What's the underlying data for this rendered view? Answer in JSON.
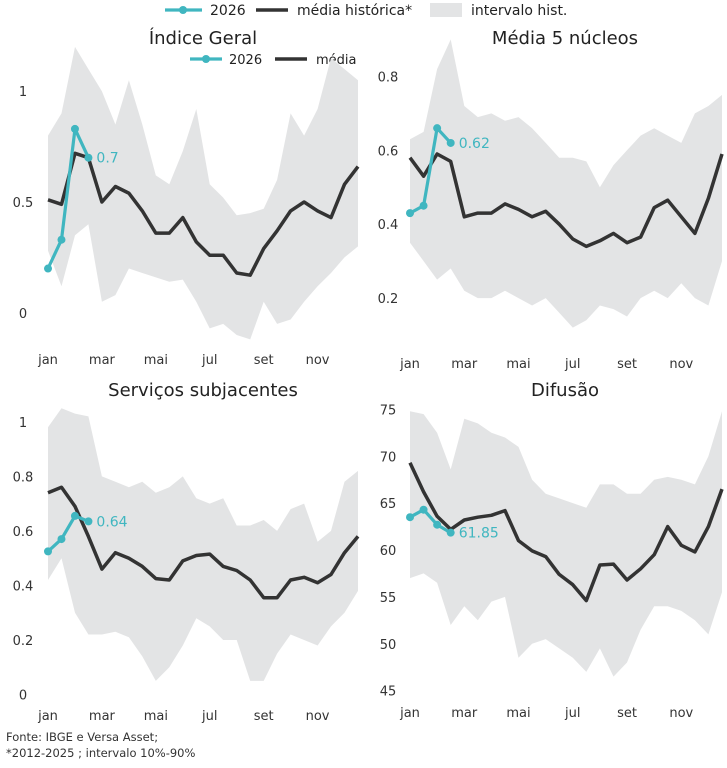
{
  "legend": [
    {
      "label": "2026",
      "kind": "series-2026"
    },
    {
      "label": "média histórica*",
      "kind": "series-media"
    },
    {
      "label": "intervalo hist.",
      "kind": "band"
    }
  ],
  "inset_legend": [
    {
      "label": "2026",
      "kind": "series-2026"
    },
    {
      "label": "média",
      "kind": "series-media"
    }
  ],
  "colors": {
    "series_2026": "#40b6c0",
    "media": "#333333",
    "band": "#e3e4e5"
  },
  "x_ticks": [
    "jan",
    "mar",
    "mai",
    "jul",
    "set",
    "nov"
  ],
  "source": {
    "line1": "Fonte: IBGE e Versa Asset;",
    "line2": "*2012-2025 ; intervalo 10%-90%"
  },
  "chart_data": [
    {
      "type": "line",
      "title": "Índice Geral",
      "ylim": [
        -0.1,
        1.15
      ],
      "y_ticks": [
        0,
        0.5,
        1
      ],
      "y_tick_labels": [
        "0",
        "0.5",
        "1"
      ],
      "x_half_months": [
        0,
        1,
        2,
        3,
        4,
        5,
        6,
        7,
        8,
        9,
        10,
        11,
        12,
        13,
        14,
        15,
        16,
        17,
        18,
        19,
        20,
        21,
        22,
        23
      ],
      "series": [
        {
          "name": "2026",
          "x": [
            0,
            1,
            2,
            3
          ],
          "values": [
            0.2,
            0.33,
            0.83,
            0.7
          ],
          "last_label": "0.7"
        },
        {
          "name": "média",
          "values": [
            0.51,
            0.49,
            0.72,
            0.7,
            0.5,
            0.57,
            0.54,
            0.46,
            0.36,
            0.36,
            0.43,
            0.32,
            0.26,
            0.26,
            0.18,
            0.17,
            0.29,
            0.37,
            0.46,
            0.5,
            0.46,
            0.43,
            0.58,
            0.66
          ]
        }
      ],
      "band": {
        "upper": [
          0.8,
          0.9,
          1.2,
          1.1,
          1.0,
          0.85,
          1.05,
          0.85,
          0.62,
          0.58,
          0.73,
          0.92,
          0.58,
          0.52,
          0.44,
          0.45,
          0.47,
          0.6,
          0.9,
          0.8,
          0.92,
          1.15,
          1.1,
          1.05
        ],
        "lower": [
          0.28,
          0.12,
          0.35,
          0.4,
          0.05,
          0.08,
          0.2,
          0.18,
          0.16,
          0.14,
          0.15,
          0.05,
          -0.07,
          -0.05,
          -0.1,
          -0.12,
          0.05,
          -0.05,
          -0.03,
          0.05,
          0.12,
          0.18,
          0.25,
          0.3
        ]
      }
    },
    {
      "type": "line",
      "title": "Média 5 núcleos",
      "ylim": [
        0.1,
        0.85
      ],
      "y_ticks": [
        0.2,
        0.4,
        0.6,
        0.8
      ],
      "y_tick_labels": [
        "0.2",
        "0.4",
        "0.6",
        "0.8"
      ],
      "x_half_months": [
        0,
        1,
        2,
        3,
        4,
        5,
        6,
        7,
        8,
        9,
        10,
        11,
        12,
        13,
        14,
        15,
        16,
        17,
        18,
        19,
        20,
        21,
        22,
        23
      ],
      "series": [
        {
          "name": "2026",
          "x": [
            0,
            1,
            2,
            3
          ],
          "values": [
            0.43,
            0.45,
            0.66,
            0.62
          ],
          "last_label": "0.62"
        },
        {
          "name": "média",
          "values": [
            0.58,
            0.53,
            0.59,
            0.57,
            0.42,
            0.43,
            0.43,
            0.455,
            0.44,
            0.42,
            0.435,
            0.4,
            0.36,
            0.34,
            0.355,
            0.375,
            0.35,
            0.365,
            0.445,
            0.465,
            0.42,
            0.375,
            0.47,
            0.59
          ]
        }
      ],
      "band": {
        "upper": [
          0.63,
          0.65,
          0.82,
          0.9,
          0.72,
          0.69,
          0.7,
          0.68,
          0.69,
          0.66,
          0.62,
          0.58,
          0.58,
          0.57,
          0.5,
          0.56,
          0.6,
          0.64,
          0.66,
          0.64,
          0.62,
          0.7,
          0.72,
          0.75
        ],
        "lower": [
          0.35,
          0.3,
          0.25,
          0.28,
          0.22,
          0.2,
          0.2,
          0.22,
          0.2,
          0.18,
          0.2,
          0.16,
          0.12,
          0.14,
          0.18,
          0.17,
          0.15,
          0.2,
          0.22,
          0.2,
          0.24,
          0.2,
          0.18,
          0.3
        ]
      }
    },
    {
      "type": "line",
      "title": "Serviços subjacentes",
      "ylim": [
        -0.02,
        1.08
      ],
      "y_ticks": [
        0,
        0.2,
        0.4,
        0.6,
        0.8,
        1
      ],
      "y_tick_labels": [
        "0",
        "0.2",
        "0.4",
        "0.6",
        "0.8",
        "1"
      ],
      "x_half_months": [
        0,
        1,
        2,
        3,
        4,
        5,
        6,
        7,
        8,
        9,
        10,
        11,
        12,
        13,
        14,
        15,
        16,
        17,
        18,
        19,
        20,
        21,
        22,
        23
      ],
      "series": [
        {
          "name": "2026",
          "x": [
            0,
            1,
            2,
            3
          ],
          "values": [
            0.525,
            0.57,
            0.655,
            0.635
          ],
          "last_label": "0.64"
        },
        {
          "name": "média",
          "values": [
            0.74,
            0.76,
            0.69,
            0.58,
            0.46,
            0.52,
            0.5,
            0.47,
            0.425,
            0.42,
            0.49,
            0.51,
            0.515,
            0.47,
            0.455,
            0.42,
            0.355,
            0.355,
            0.42,
            0.43,
            0.41,
            0.44,
            0.52,
            0.58
          ]
        }
      ],
      "band": {
        "upper": [
          0.98,
          1.05,
          1.03,
          1.02,
          0.8,
          0.78,
          0.76,
          0.78,
          0.74,
          0.76,
          0.8,
          0.72,
          0.7,
          0.72,
          0.62,
          0.62,
          0.64,
          0.6,
          0.68,
          0.7,
          0.56,
          0.6,
          0.78,
          0.82
        ],
        "lower": [
          0.42,
          0.5,
          0.3,
          0.22,
          0.22,
          0.23,
          0.21,
          0.14,
          0.05,
          0.1,
          0.18,
          0.28,
          0.25,
          0.2,
          0.2,
          0.05,
          0.05,
          0.15,
          0.22,
          0.2,
          0.18,
          0.25,
          0.3,
          0.38
        ]
      }
    },
    {
      "type": "line",
      "title": "Difusão",
      "ylim": [
        44,
        76
      ],
      "y_ticks": [
        45,
        50,
        55,
        60,
        65,
        70,
        75
      ],
      "y_tick_labels": [
        "45",
        "50",
        "55",
        "60",
        "65",
        "70",
        "75"
      ],
      "x_half_months": [
        0,
        1,
        2,
        3,
        4,
        5,
        6,
        7,
        8,
        9,
        10,
        11,
        12,
        13,
        14,
        15,
        16,
        17,
        18,
        19,
        20,
        21,
        22,
        23
      ],
      "series": [
        {
          "name": "2026",
          "x": [
            0,
            1,
            2,
            3
          ],
          "values": [
            63.5,
            64.3,
            62.7,
            61.85
          ],
          "last_label": "61.85"
        },
        {
          "name": "média",
          "values": [
            69.3,
            66.2,
            63.6,
            62.2,
            63.2,
            63.5,
            63.7,
            64.2,
            61.0,
            59.9,
            59.3,
            57.4,
            56.3,
            54.6,
            58.4,
            58.5,
            56.8,
            58.0,
            59.5,
            62.5,
            60.5,
            59.8,
            62.5,
            66.5
          ]
        }
      ],
      "band": {
        "upper": [
          74.8,
          74.5,
          72.5,
          68.6,
          74.0,
          73.5,
          72.5,
          72.0,
          71.0,
          67.5,
          66.0,
          65.5,
          65.0,
          64.5,
          67.0,
          67.0,
          66.0,
          66.0,
          67.5,
          67.8,
          67.5,
          67.0,
          70.0,
          74.8
        ],
        "lower": [
          57.0,
          57.5,
          56.5,
          52.0,
          54.0,
          52.5,
          54.5,
          55.0,
          48.5,
          50.0,
          50.5,
          49.5,
          48.5,
          47.0,
          49.5,
          46.5,
          48.0,
          51.5,
          54.0,
          54.0,
          53.5,
          52.5,
          51.0,
          55.5
        ]
      }
    }
  ]
}
